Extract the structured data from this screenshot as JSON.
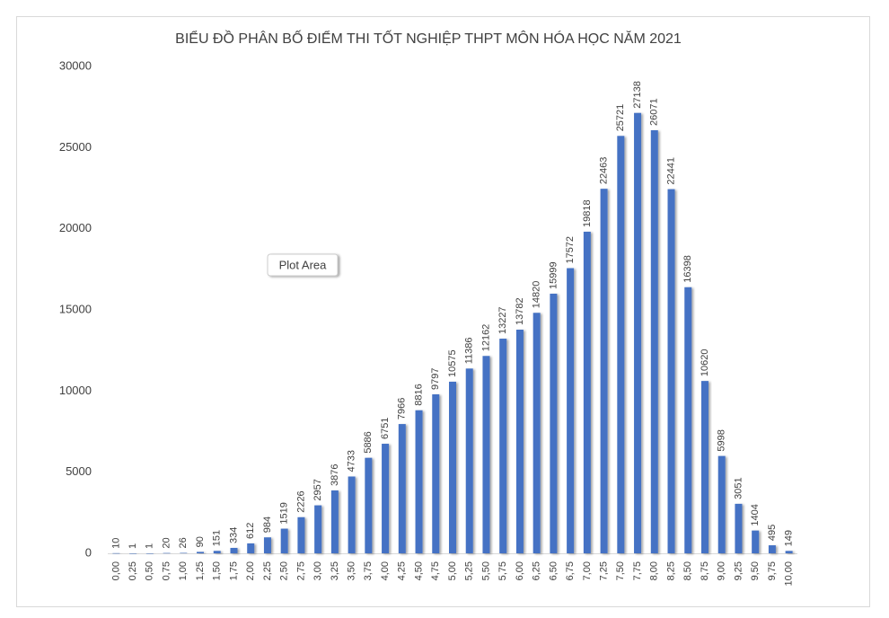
{
  "chart_data": {
    "type": "bar",
    "title": "BIỂU ĐỒ PHÂN BỐ ĐIỂM THI TỐT NGHIỆP THPT MÔN HÓA HỌC NĂM 2021",
    "tooltip": "Plot Area",
    "categories": [
      "0,00",
      "0,25",
      "0,50",
      "0,75",
      "1,00",
      "1,25",
      "1,50",
      "1,75",
      "2,00",
      "2,25",
      "2,50",
      "2,75",
      "3,00",
      "3,25",
      "3,50",
      "3,75",
      "4,00",
      "4,25",
      "4,50",
      "4,75",
      "5,00",
      "5,25",
      "5,50",
      "5,75",
      "6,00",
      "6,25",
      "6,50",
      "6,75",
      "7,00",
      "7,25",
      "7,50",
      "7,75",
      "8,00",
      "8,25",
      "8,50",
      "8,75",
      "9,00",
      "9,25",
      "9,50",
      "9,75",
      "10,00"
    ],
    "values": [
      10,
      1,
      1,
      20,
      26,
      90,
      151,
      334,
      612,
      984,
      1519,
      2226,
      2957,
      3876,
      4733,
      5886,
      6751,
      7966,
      8816,
      9797,
      10575,
      11386,
      12162,
      13227,
      13782,
      14820,
      15999,
      17572,
      19818,
      22463,
      25721,
      27138,
      26071,
      22441,
      16398,
      10620,
      5998,
      3051,
      1404,
      495,
      149
    ],
    "color": "#4472c4",
    "ylim": [
      0,
      30000
    ],
    "yticks": [
      0,
      5000,
      10000,
      15000,
      20000,
      25000,
      30000
    ],
    "grid": false
  }
}
